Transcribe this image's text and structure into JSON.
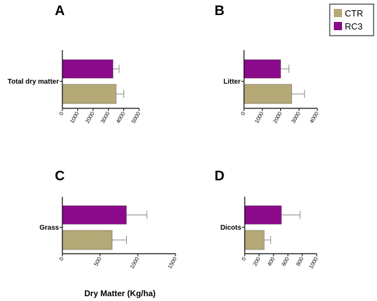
{
  "colors": {
    "CTR": "#b9ad7b",
    "RC3": "#8b0a8b",
    "axis": "#000000",
    "error": "#8a8a8a"
  },
  "legend": {
    "items": [
      {
        "name": "CTR"
      },
      {
        "name": "RC3"
      }
    ],
    "position": "top-right"
  },
  "xlabel": "Dry  Matter  (Kg/ha)",
  "chart_data": [
    {
      "type": "bar",
      "orientation": "horizontal",
      "panel": "A",
      "categories": [
        "Total dry matter"
      ],
      "xlim": [
        0,
        5000
      ],
      "ticks": [
        0,
        1000,
        2000,
        3000,
        4000,
        5000
      ],
      "tick_labels": [
        "0",
        "1000",
        "2000",
        "3000",
        "4000",
        "5000"
      ],
      "series": [
        {
          "name": "RC3",
          "values": [
            3300
          ],
          "errors": [
            400
          ]
        },
        {
          "name": "CTR",
          "values": [
            3500
          ],
          "errors": [
            500
          ]
        }
      ]
    },
    {
      "type": "bar",
      "orientation": "horizontal",
      "panel": "B",
      "categories": [
        "Litter"
      ],
      "xlim": [
        0,
        4000
      ],
      "ticks": [
        0,
        1000,
        2000,
        3000,
        4000
      ],
      "tick_labels": [
        "0",
        "1000",
        "2000",
        "3000",
        "4000"
      ],
      "series": [
        {
          "name": "RC3",
          "values": [
            2000
          ],
          "errors": [
            450
          ]
        },
        {
          "name": "CTR",
          "values": [
            2600
          ],
          "errors": [
            700
          ]
        }
      ]
    },
    {
      "type": "bar",
      "orientation": "horizontal",
      "panel": "C",
      "categories": [
        "Grass"
      ],
      "xlim": [
        0,
        1500
      ],
      "ticks": [
        0,
        500,
        1000,
        1500
      ],
      "tick_labels": [
        "0",
        "500",
        "1000",
        "1500"
      ],
      "series": [
        {
          "name": "RC3",
          "values": [
            850
          ],
          "errors": [
            270
          ]
        },
        {
          "name": "CTR",
          "values": [
            660
          ],
          "errors": [
            190
          ]
        }
      ]
    },
    {
      "type": "bar",
      "orientation": "horizontal",
      "panel": "D",
      "categories": [
        "Dicots"
      ],
      "xlim": [
        0,
        1000
      ],
      "ticks": [
        0,
        200,
        400,
        600,
        800,
        1000
      ],
      "tick_labels": [
        "0",
        "200",
        "400",
        "600",
        "800",
        "1000"
      ],
      "series": [
        {
          "name": "RC3",
          "values": [
            510
          ],
          "errors": [
            260
          ]
        },
        {
          "name": "CTR",
          "values": [
            270
          ],
          "errors": [
            90
          ]
        }
      ]
    }
  ]
}
